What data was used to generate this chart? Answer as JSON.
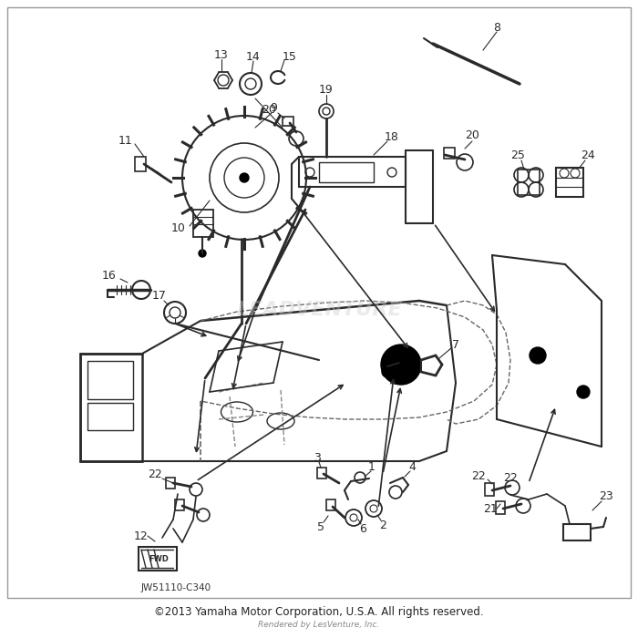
{
  "copyright": "©2013 Yamaha Motor Corporation, U.S.A. All rights reserved.",
  "rendered_by": "Rendered by LesVenture, Inc.",
  "part_code": "JW51110-C340",
  "background_color": "#ffffff",
  "line_color": "#2a2a2a",
  "text_color": "#2a2a2a",
  "figsize": [
    7.0,
    7.0
  ],
  "dpi": 100
}
